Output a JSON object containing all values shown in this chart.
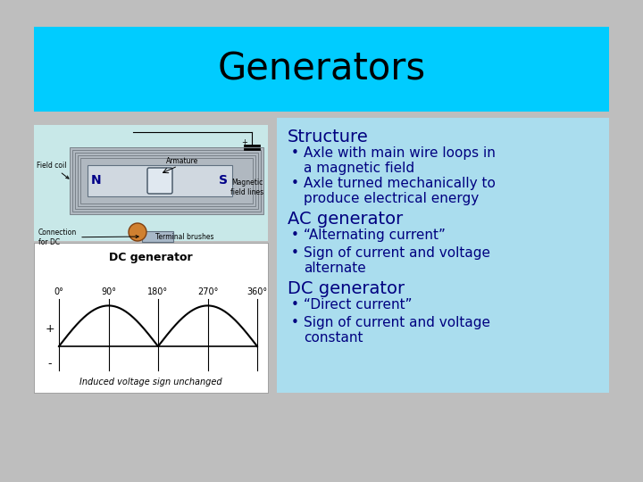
{
  "title": "Generators",
  "title_fontsize": 30,
  "title_color": "#000000",
  "title_bg_color": "#00CCFF",
  "bg_color": "#BEBEBE",
  "left_top_panel_bg": "#C8E8E8",
  "left_bot_panel_bg": "#FFFFFF",
  "right_panel_bg": "#AADDEE",
  "section_headers": [
    "Structure",
    "AC generator",
    "DC generator"
  ],
  "section_header_color": "#000080",
  "section_header_fontsize": 14,
  "bullet_color": "#000080",
  "bullet_fontsize": 11,
  "structure_bullets": [
    "Axle with main wire loops in\na magnetic field",
    "Axle turned mechanically to\nproduce electrical energy"
  ],
  "ac_bullets": [
    "“Alternating current”",
    "Sign of current and voltage\nalternate"
  ],
  "dc_bullets": [
    "“Direct current”",
    "Sign of current and voltage\nconstant"
  ],
  "dc_graph_title": "DC generator",
  "dc_graph_labels": [
    "0°",
    "90°",
    "180°",
    "270°",
    "360°"
  ],
  "dc_graph_plus": "+",
  "dc_graph_minus": "-",
  "dc_graph_caption": "Induced voltage sign unchanged"
}
